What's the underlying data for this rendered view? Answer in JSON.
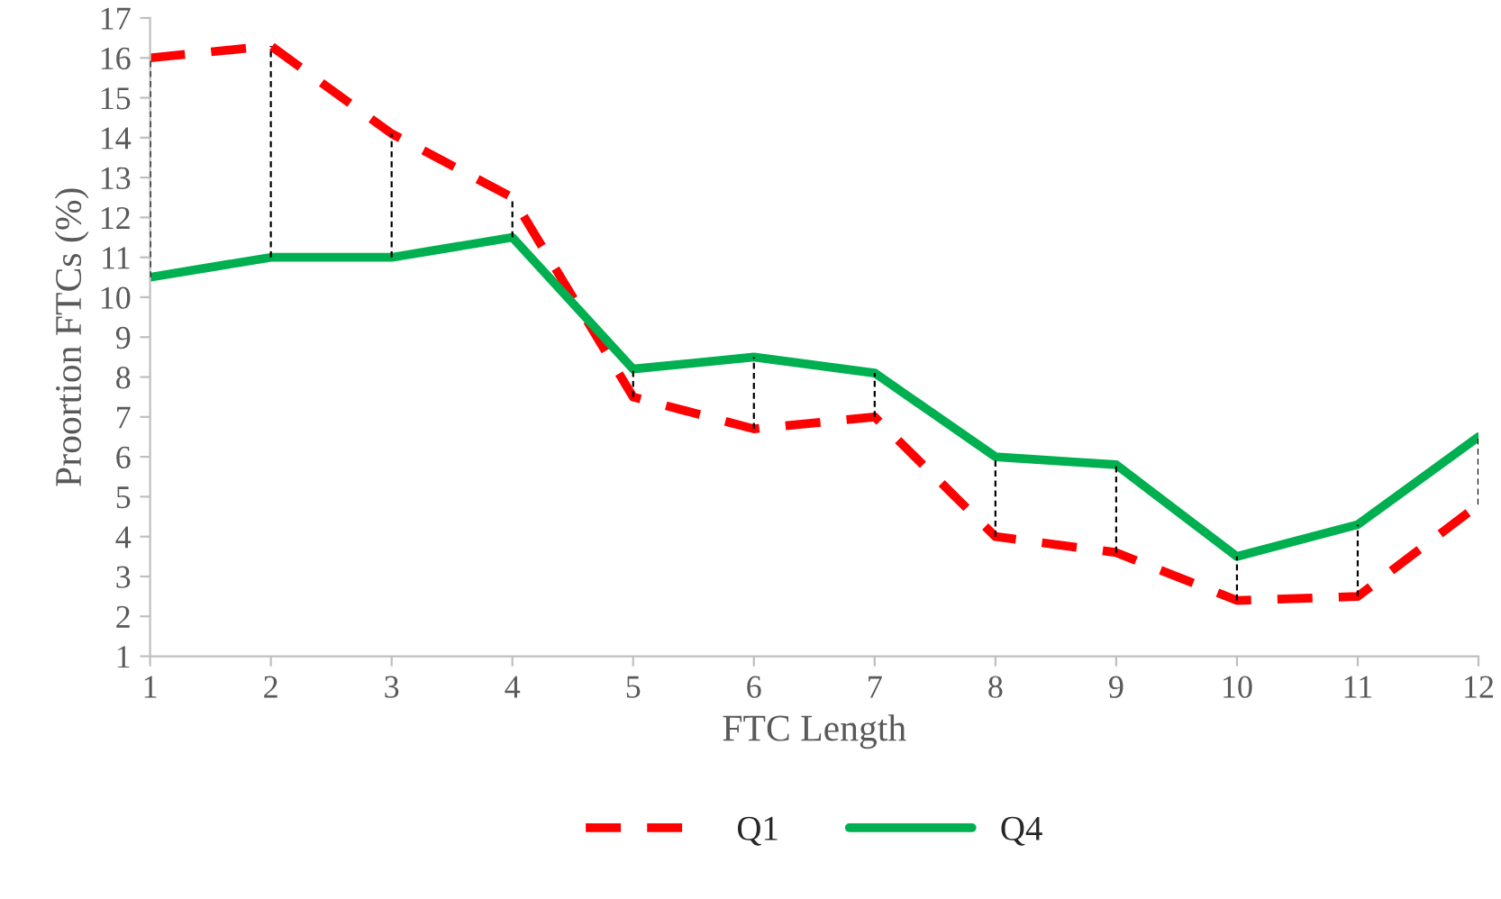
{
  "chart_data": {
    "type": "line",
    "xlabel": "FTC Length",
    "ylabel": "Proortion FTCs (%)",
    "x": [
      1,
      2,
      3,
      4,
      5,
      6,
      7,
      8,
      9,
      10,
      11,
      12
    ],
    "series": [
      {
        "name": "Q1",
        "color": "#ff0000",
        "line_style": "dashed",
        "values": [
          16.0,
          16.3,
          14.1,
          12.5,
          7.5,
          6.7,
          7.0,
          4.0,
          3.6,
          2.4,
          2.5,
          4.8
        ]
      },
      {
        "name": "Q4",
        "color": "#00b050",
        "line_style": "solid",
        "values": [
          10.5,
          11.0,
          11.0,
          11.5,
          8.2,
          8.5,
          8.1,
          6.0,
          5.8,
          3.5,
          4.3,
          6.5
        ],
        "errors": [
          [
            10.5,
            16.0
          ],
          [
            11.0,
            16.3
          ],
          [
            11.0,
            14.1
          ],
          [
            11.5,
            12.5
          ],
          [
            7.5,
            8.2
          ],
          [
            6.7,
            8.5
          ],
          [
            7.0,
            8.1
          ],
          [
            4.0,
            6.0
          ],
          [
            3.6,
            5.8
          ],
          [
            2.4,
            3.5
          ],
          [
            2.5,
            4.3
          ],
          [
            4.8,
            6.5
          ]
        ]
      }
    ],
    "xlim": [
      1,
      12
    ],
    "xticks": [
      1,
      2,
      3,
      4,
      5,
      6,
      7,
      8,
      9,
      10,
      11,
      12
    ],
    "ylim": [
      1,
      17
    ],
    "yticks": [
      1,
      2,
      3,
      4,
      5,
      6,
      7,
      8,
      9,
      10,
      11,
      12,
      13,
      14,
      15,
      16,
      17
    ],
    "grid": false,
    "legend": "bottom",
    "marker": "none"
  }
}
